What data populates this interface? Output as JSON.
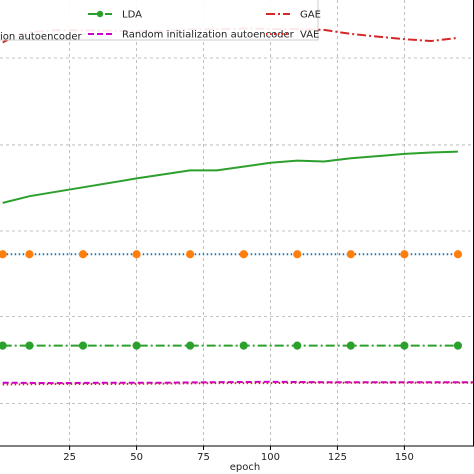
{
  "chart_data": {
    "type": "line",
    "xlabel": "epoch",
    "ylabel": "",
    "xlim": [
      -1,
      176
    ],
    "ylim": [
      0.0,
      1.0
    ],
    "x_ticks": [
      25,
      50,
      75,
      100,
      125,
      150
    ],
    "grid": true,
    "legend_placement": "top",
    "legend_entries": [
      {
        "label": "ion autoencoder",
        "color": "#1f77b4",
        "style": "partial"
      },
      {
        "label": "LDA",
        "color": "#2ca02c",
        "style": "dashdot-marker"
      },
      {
        "label": "Random initialization autoencoder",
        "color": "#cc00cc",
        "style": "dashed"
      },
      {
        "label": "GAE",
        "color": "#d62728",
        "style": "dashdot"
      },
      {
        "label": "VAE",
        "color": "#d62728",
        "style": "dotted"
      }
    ],
    "series": [
      {
        "name": "GAE",
        "color": "#d62728",
        "style": "dashdot",
        "x": [
          0,
          5,
          10,
          20,
          30,
          40,
          50,
          60,
          70,
          80,
          90,
          100,
          110,
          120,
          130,
          140,
          150,
          160,
          170
        ],
        "values": [
          0.905,
          0.92,
          0.928,
          0.932,
          0.932,
          0.931,
          0.93,
          0.93,
          0.934,
          0.934,
          0.936,
          0.935,
          0.935,
          0.933,
          0.924,
          0.918,
          0.912,
          0.908,
          0.915
        ]
      },
      {
        "name": "solid-green",
        "color": "#2ca02c",
        "style": "solid",
        "x": [
          0,
          10,
          30,
          50,
          70,
          80,
          100,
          110,
          120,
          130,
          140,
          150,
          160,
          170
        ],
        "values": [
          0.545,
          0.56,
          0.58,
          0.6,
          0.618,
          0.618,
          0.635,
          0.64,
          0.638,
          0.645,
          0.65,
          0.655,
          0.658,
          0.66
        ]
      },
      {
        "name": "orange-markers",
        "color": "#1f77b4",
        "marker_color": "#ff7f0e",
        "style": "dotted-marker",
        "x": [
          0,
          10,
          30,
          50,
          70,
          80,
          100,
          110,
          120,
          130,
          140,
          150,
          160,
          170
        ],
        "values": [
          0.43,
          0.43,
          0.43,
          0.43,
          0.43,
          0.43,
          0.43,
          0.43,
          0.43,
          0.43,
          0.43,
          0.43,
          0.43,
          0.43
        ]
      },
      {
        "name": "LDA",
        "color": "#2ca02c",
        "style": "dashdot-marker",
        "x": [
          0,
          10,
          30,
          50,
          70,
          80,
          100,
          110,
          120,
          130,
          140,
          150,
          160,
          170
        ],
        "values": [
          0.225,
          0.225,
          0.225,
          0.225,
          0.225,
          0.225,
          0.225,
          0.225,
          0.225,
          0.225,
          0.225,
          0.225,
          0.225,
          0.225
        ]
      },
      {
        "name": "Random initialization autoencoder",
        "color": "#cc00cc",
        "style": "dashed",
        "x": [
          0,
          20,
          40,
          60,
          80,
          100,
          120,
          140,
          160,
          176
        ],
        "values": [
          0.142,
          0.141,
          0.142,
          0.142,
          0.143,
          0.144,
          0.143,
          0.143,
          0.143,
          0.143
        ]
      },
      {
        "name": "VAE",
        "color": "#d62728",
        "style": "dotted",
        "x": [
          0,
          20,
          40,
          60,
          80,
          100,
          120,
          140,
          160,
          176
        ],
        "values": [
          0.138,
          0.139,
          0.139,
          0.14,
          0.141,
          0.141,
          0.142,
          0.142,
          0.142,
          0.142
        ]
      }
    ]
  }
}
